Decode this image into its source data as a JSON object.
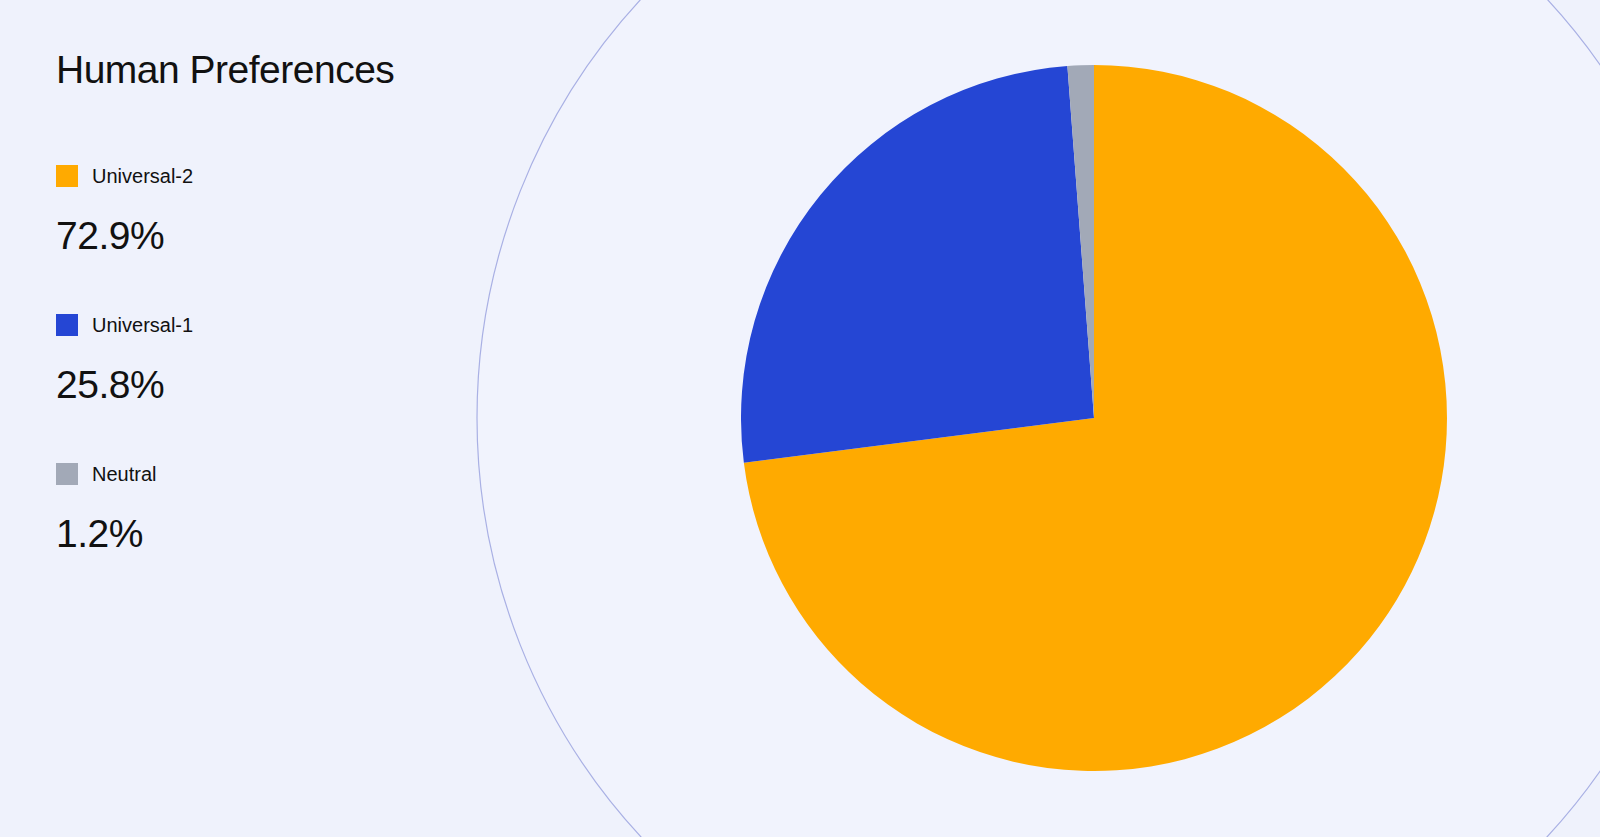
{
  "chart_data": {
    "type": "pie",
    "title": "Human Preferences",
    "categories": [
      "Universal-2",
      "Universal-1",
      "Neutral"
    ],
    "values": [
      72.9,
      25.8,
      1.2
    ],
    "value_labels": [
      "72.9%",
      "25.8%",
      "1.2%"
    ],
    "colors": [
      "#ffaa00",
      "#2546d4",
      "#a2a9b7"
    ],
    "legend": "left"
  }
}
